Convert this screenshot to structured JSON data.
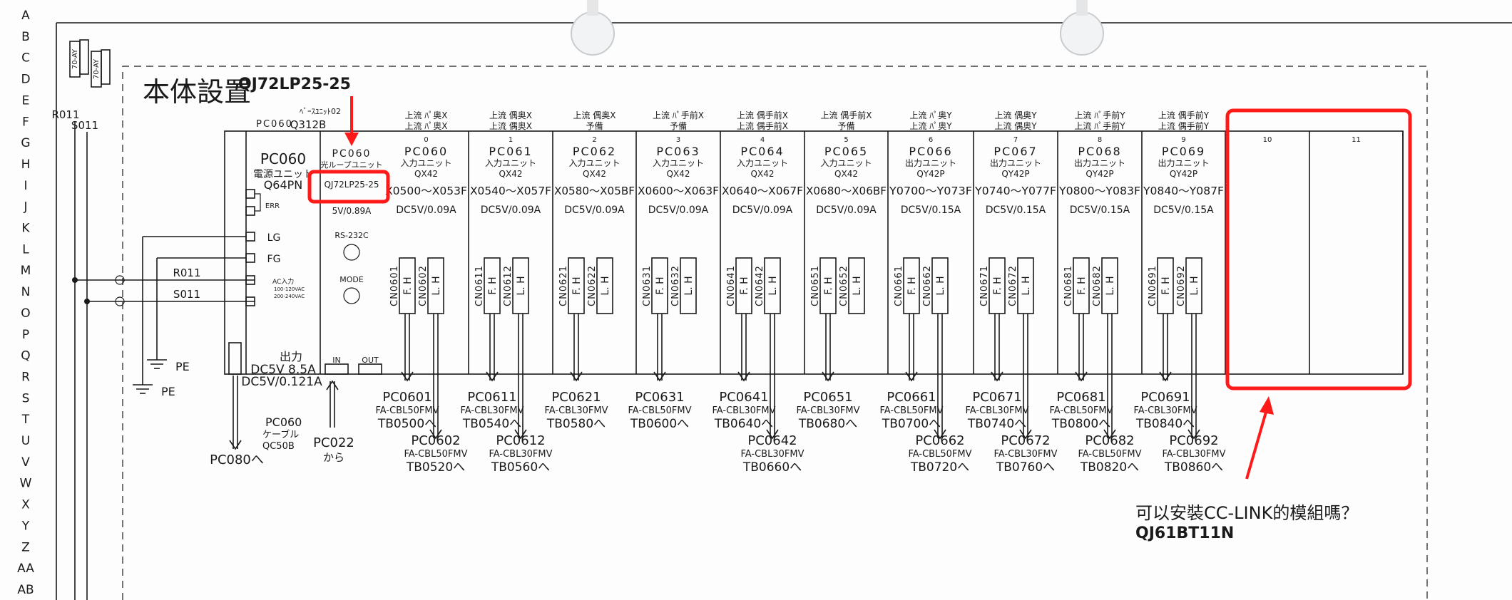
{
  "row_letters": [
    "A",
    "B",
    "C",
    "D",
    "E",
    "F",
    "G",
    "H",
    "I",
    "J",
    "K",
    "L",
    "M",
    "N",
    "O",
    "P",
    "Q",
    "R",
    "S",
    "T",
    "U",
    "V",
    "W",
    "X",
    "Y",
    "Z",
    "AA",
    "AB"
  ],
  "logo_text": [
    "70-AY",
    "70-AY"
  ],
  "title": "本体設置",
  "annotations": {
    "top_label": "QJ72LP25-25",
    "question": "可以安裝CC-LINK的模組嗎？",
    "suggested_module": "QJ61BT11N",
    "color": "#ff1a1a"
  },
  "feed": {
    "r": "R011",
    "s": "S011",
    "pe": "PE"
  },
  "base": {
    "pc": "PC060",
    "name": "ﾍﾞｰｽﾕﾆｯﾄ02",
    "model": "Q312B"
  },
  "power_unit": {
    "pc": "PC060",
    "type": "電源ユニット",
    "model": "Q64PN",
    "terminals": {
      "err": "ERR",
      "lg": "LG",
      "fg": "FG",
      "ac": "AC入力",
      "ac1": "100-120VAC",
      "ac2": "200-240VAC"
    },
    "output_label": "出力",
    "output": "DC5V 8.5A",
    "consumption": "DC5V/0.121A",
    "cable_pc": "PC060",
    "cable_label": "ケーブル",
    "cable_model": "QC50B",
    "cable_to": "PC080へ"
  },
  "loop_unit": {
    "pc": "PC060",
    "type": "光ループユニット",
    "model": "QJ72LP25-25",
    "current": "5V/0.89A",
    "port": "RS-232C",
    "mode": "MODE",
    "in": "IN",
    "out": "OUT",
    "from_pc": "PC022",
    "from_label": "から"
  },
  "modules": [
    {
      "slot": "0",
      "header": [
        "上流 ﾊﾟ奥X",
        "上流 ﾊﾟ奥X"
      ],
      "pc": "PC060",
      "type": "入力ユニット",
      "model": "QX42",
      "address": "X0500〜X053F",
      "current": "DC5V/0.09A",
      "connectors": [
        {
          "cn": "CN0601",
          "label": "F. H"
        },
        {
          "cn": "CN0602",
          "label": "L. H"
        }
      ],
      "cables": [
        {
          "pc": "PC0601",
          "cable": "FA-CBL50FMV",
          "to": "TB0500へ"
        },
        {
          "pc": "PC0602",
          "cable": "FA-CBL50FMV",
          "to": "TB0520へ"
        }
      ]
    },
    {
      "slot": "1",
      "header": [
        "上流 偶奥X",
        "上流 偶奥X"
      ],
      "pc": "PC061",
      "type": "入力ユニット",
      "model": "QX42",
      "address": "X0540〜X057F",
      "current": "DC5V/0.09A",
      "connectors": [
        {
          "cn": "CN0611",
          "label": "F. H"
        },
        {
          "cn": "CN0612",
          "label": "L. H"
        }
      ],
      "cables": [
        {
          "pc": "PC0611",
          "cable": "FA-CBL30FMV",
          "to": "TB0540へ"
        },
        {
          "pc": "PC0612",
          "cable": "FA-CBL30FMV",
          "to": "TB0560へ"
        }
      ]
    },
    {
      "slot": "2",
      "header": [
        "上流 偶奥X",
        "予備"
      ],
      "pc": "PC062",
      "type": "入力ユニット",
      "model": "QX42",
      "address": "X0580〜X05BF",
      "current": "DC5V/0.09A",
      "connectors": [
        {
          "cn": "CN0621",
          "label": "F. H"
        },
        {
          "cn": "CN0622",
          "label": "L. H"
        }
      ],
      "cables": [
        {
          "pc": "PC0621",
          "cable": "FA-CBL30FMV",
          "to": "TB0580へ"
        }
      ]
    },
    {
      "slot": "3",
      "header": [
        "上流 ﾊﾟ手前X",
        "予備"
      ],
      "pc": "PC063",
      "type": "入力ユニット",
      "model": "QX42",
      "address": "X0600〜X063F",
      "current": "DC5V/0.09A",
      "connectors": [
        {
          "cn": "CN0631",
          "label": "F. H"
        },
        {
          "cn": "CN0632",
          "label": "L. H"
        }
      ],
      "cables": [
        {
          "pc": "PC0631",
          "cable": "FA-CBL50FMV",
          "to": "TB0600へ"
        }
      ]
    },
    {
      "slot": "4",
      "header": [
        "上流 偶手前X",
        "上流 偶手前X"
      ],
      "pc": "PC064",
      "type": "入力ユニット",
      "model": "QX42",
      "address": "X0640〜X067F",
      "current": "DC5V/0.09A",
      "connectors": [
        {
          "cn": "CN0641",
          "label": "F. H"
        },
        {
          "cn": "CN0642",
          "label": "L. H"
        }
      ],
      "cables": [
        {
          "pc": "PC0641",
          "cable": "FA-CBL30FMV",
          "to": "TB0640へ"
        },
        {
          "pc": "PC0642",
          "cable": "FA-CBL30FMV",
          "to": "TB0660へ"
        }
      ]
    },
    {
      "slot": "5",
      "header": [
        "上流 偶手前X",
        "予備"
      ],
      "pc": "PC065",
      "type": "入力ユニット",
      "model": "QX42",
      "address": "X0680〜X06BF",
      "current": "DC5V/0.09A",
      "connectors": [
        {
          "cn": "CN0651",
          "label": "F. H"
        },
        {
          "cn": "CN0652",
          "label": "L. H"
        }
      ],
      "cables": [
        {
          "pc": "PC0651",
          "cable": "FA-CBL30FMV",
          "to": "TB0680へ"
        }
      ]
    },
    {
      "slot": "6",
      "header": [
        "上流 ﾊﾟ奥Y",
        "上流 ﾊﾟ奥Y"
      ],
      "pc": "PC066",
      "type": "出力ユニット",
      "model": "QY42P",
      "address": "Y0700〜Y073F",
      "current": "DC5V/0.15A",
      "connectors": [
        {
          "cn": "CN0661",
          "label": "F. H"
        },
        {
          "cn": "CN0662",
          "label": "L. H"
        }
      ],
      "cables": [
        {
          "pc": "PC0661",
          "cable": "FA-CBL50FMV",
          "to": "TB0700へ"
        },
        {
          "pc": "PC0662",
          "cable": "FA-CBL50FMV",
          "to": "TB0720へ"
        }
      ]
    },
    {
      "slot": "7",
      "header": [
        "上流 偶奥Y",
        "上流 偶奥Y"
      ],
      "pc": "PC067",
      "type": "出力ユニット",
      "model": "QY42P",
      "address": "Y0740〜Y077F",
      "current": "DC5V/0.15A",
      "connectors": [
        {
          "cn": "CN0671",
          "label": "F. H"
        },
        {
          "cn": "CN0672",
          "label": "L. H"
        }
      ],
      "cables": [
        {
          "pc": "PC0671",
          "cable": "FA-CBL30FMV",
          "to": "TB0740へ"
        },
        {
          "pc": "PC0672",
          "cable": "FA-CBL30FMV",
          "to": "TB0760へ"
        }
      ]
    },
    {
      "slot": "8",
      "header": [
        "上流 ﾊﾟ手前Y",
        "上流 ﾊﾟ手前Y"
      ],
      "pc": "PC068",
      "type": "出力ユニット",
      "model": "QY42P",
      "address": "Y0800〜Y083F",
      "current": "DC5V/0.15A",
      "connectors": [
        {
          "cn": "CN0681",
          "label": "F. H"
        },
        {
          "cn": "CN0682",
          "label": "L. H"
        }
      ],
      "cables": [
        {
          "pc": "PC0681",
          "cable": "FA-CBL50FMV",
          "to": "TB0800へ"
        },
        {
          "pc": "PC0682",
          "cable": "FA-CBL50FMV",
          "to": "TB0820へ"
        }
      ]
    },
    {
      "slot": "9",
      "header": [
        "上流 偶手前Y",
        "上流 偶手前Y"
      ],
      "pc": "PC069",
      "type": "出力ユニット",
      "model": "QY42P",
      "address": "Y0840〜Y087F",
      "current": "DC5V/0.15A",
      "connectors": [
        {
          "cn": "CN0691",
          "label": "F. H"
        },
        {
          "cn": "CN0692",
          "label": "L. H"
        }
      ],
      "cables": [
        {
          "pc": "PC0691",
          "cable": "FA-CBL30FMV",
          "to": "TB0840へ"
        },
        {
          "pc": "PC0692",
          "cable": "FA-CBL30FMV",
          "to": "TB0860へ"
        }
      ]
    }
  ],
  "empty_slots": [
    {
      "slot": "10"
    },
    {
      "slot": "11"
    }
  ]
}
